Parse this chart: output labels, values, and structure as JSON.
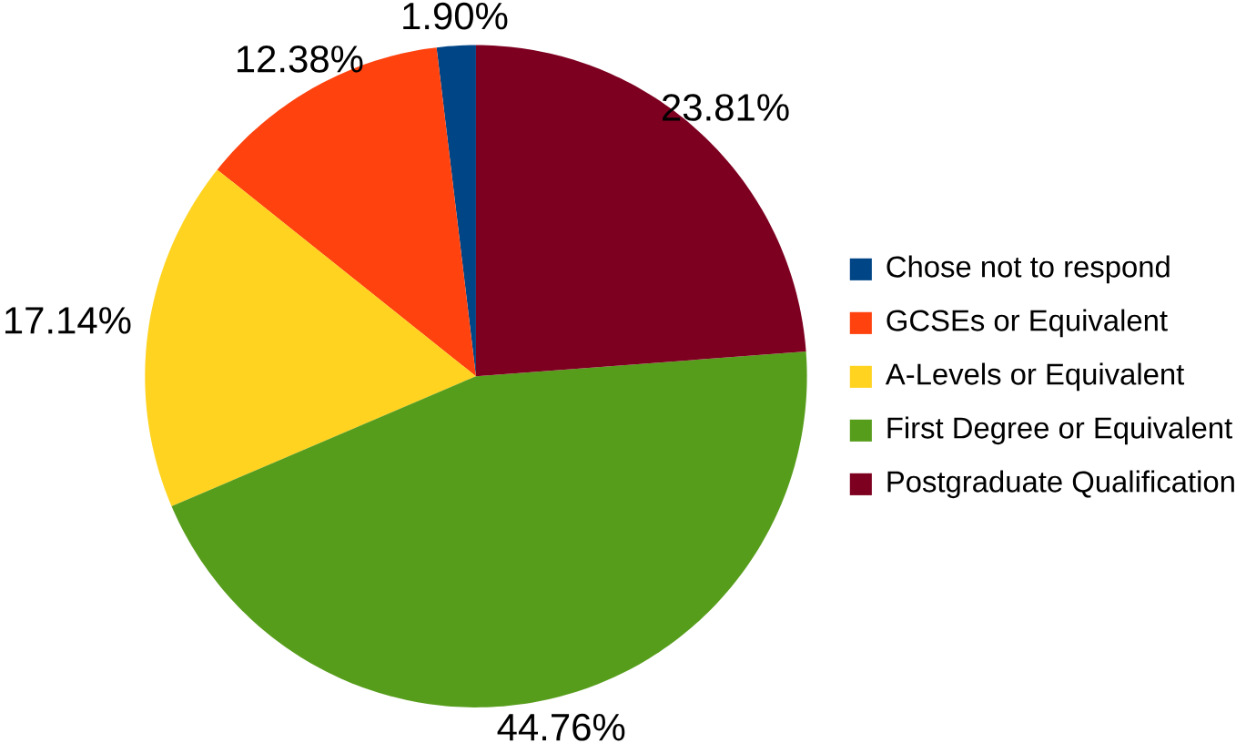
{
  "chart_data": {
    "type": "pie",
    "categories": [
      "Chose not to respond",
      "GCSEs or Equivalent",
      "A-Levels or Equivalent",
      "First Degree or Equivalent",
      "Postgraduate Qualification"
    ],
    "values": [
      1.9,
      12.38,
      17.14,
      44.76,
      23.81
    ],
    "value_labels": [
      "1.90%",
      "12.38%",
      "17.14%",
      "44.76%",
      "23.81%"
    ],
    "colors": [
      "#004586",
      "#ff420e",
      "#ffd320",
      "#579d1c",
      "#7e0021"
    ],
    "legend": "right"
  }
}
